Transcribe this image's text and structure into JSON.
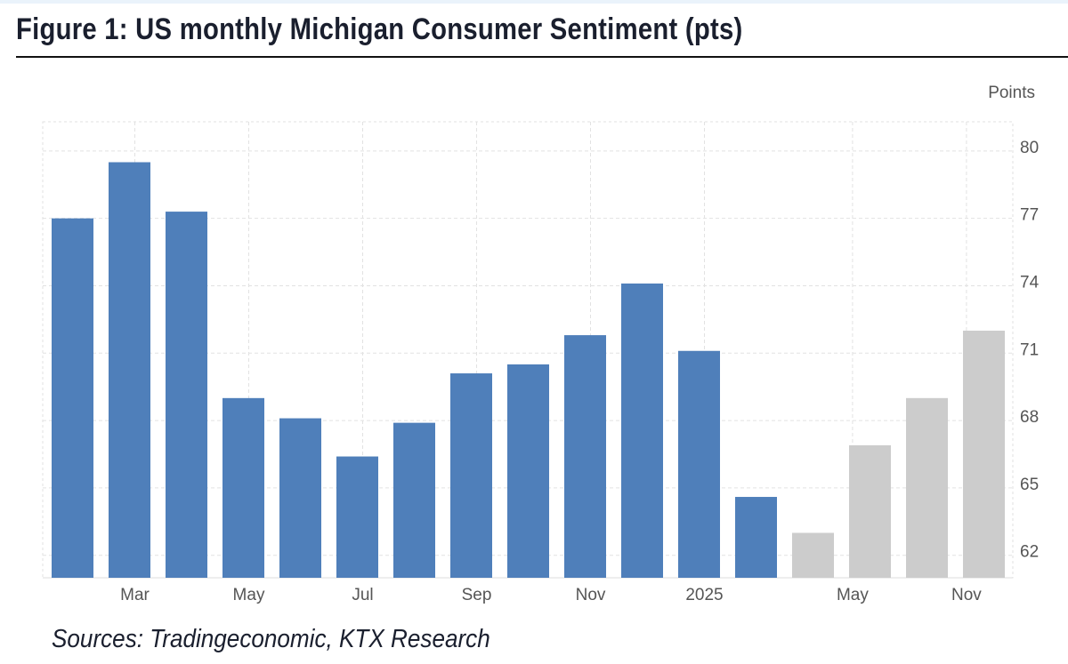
{
  "title": "Figure 1: US monthly Michigan Consumer Sentiment (pts)",
  "source": "Sources: Tradingeconomic, KTX Research",
  "chart_data": {
    "type": "bar",
    "title": "Figure 1: US monthly Michigan Consumer Sentiment (pts)",
    "ylabel": "Points",
    "ylim": [
      61,
      81.3
    ],
    "y_axis_position": "right",
    "yticks": [
      62,
      65,
      68,
      71,
      74,
      77,
      80
    ],
    "grid": true,
    "xtick_labels": [
      {
        "label": "Mar",
        "at": 1
      },
      {
        "label": "May",
        "at": 3
      },
      {
        "label": "Jul",
        "at": 5
      },
      {
        "label": "Sep",
        "at": 7
      },
      {
        "label": "Nov",
        "at": 9
      },
      {
        "label": "2025",
        "at": 11
      },
      {
        "label": "May",
        "at": 13.6
      },
      {
        "label": "Nov",
        "at": 15.6
      }
    ],
    "values": [
      77.0,
      79.5,
      77.3,
      69.0,
      68.1,
      66.4,
      67.9,
      70.1,
      70.5,
      71.8,
      74.1,
      71.1,
      64.6,
      63.0,
      66.9,
      69.0,
      72.0
    ],
    "forecast": [
      false,
      false,
      false,
      false,
      false,
      false,
      false,
      false,
      false,
      false,
      false,
      false,
      false,
      true,
      true,
      true,
      true
    ],
    "colors": {
      "actual": "#4f7fba",
      "forecast": "#cccccc",
      "grid": "#e2e2e2"
    }
  }
}
